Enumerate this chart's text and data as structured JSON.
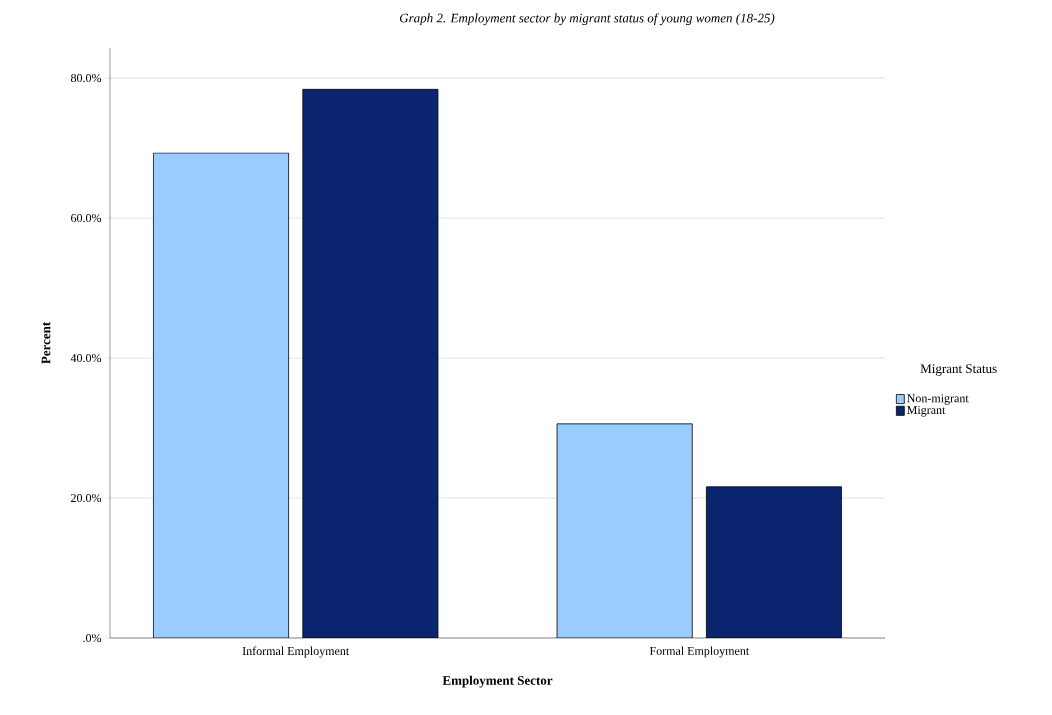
{
  "chart_data": {
    "type": "bar",
    "title": "Graph 2. Employment sector by migrant status of young women (18-25)",
    "xlabel": "Employment Sector",
    "ylabel": "Percent",
    "legend_title": "Migrant Status",
    "categories": [
      "Informal Employment",
      "Formal Employment"
    ],
    "series": [
      {
        "name": "Non-migrant",
        "color": "#99ccff",
        "values": [
          69.3,
          30.6
        ]
      },
      {
        "name": "Migrant",
        "color": "#0a2470",
        "values": [
          78.4,
          21.6
        ]
      }
    ],
    "ylim": [
      0,
      84.3
    ],
    "yticks": [
      {
        "value": 0,
        "label": ".0%"
      },
      {
        "value": 20,
        "label": "20.0%"
      },
      {
        "value": 40,
        "label": "40.0%"
      },
      {
        "value": 60,
        "label": "60.0%"
      },
      {
        "value": 80,
        "label": "80.0%"
      }
    ],
    "grid": "y",
    "legend": "right"
  }
}
